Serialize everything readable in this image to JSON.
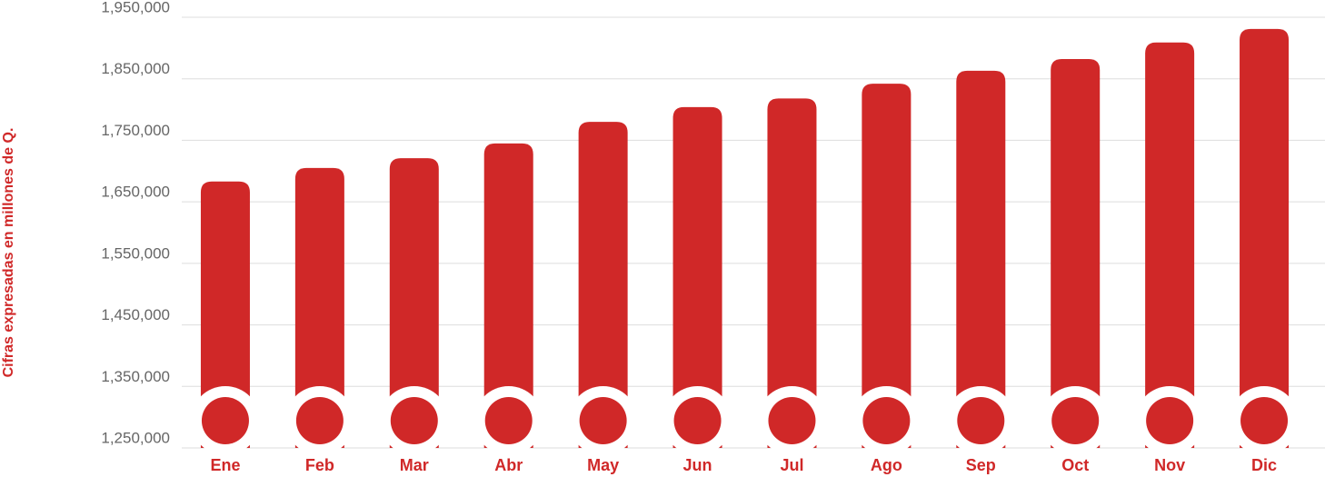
{
  "chart_data": {
    "type": "bar",
    "y_label": "Cifras expresadas en millones de Q.",
    "categories": [
      "Ene",
      "Feb",
      "Mar",
      "Abr",
      "May",
      "Jun",
      "Jul",
      "Ago",
      "Sep",
      "Oct",
      "Nov",
      "Dic"
    ],
    "values": [
      1683000,
      1705000,
      1721000,
      1745000,
      1780000,
      1804000,
      1818000,
      1842000,
      1863000,
      1882000,
      1909000,
      1931000
    ],
    "color": "#d02828",
    "ylim": [
      1250000,
      1950000
    ],
    "yticks": [
      {
        "value": 1250000,
        "label": "1,250,000"
      },
      {
        "value": 1350000,
        "label": "1,350,000"
      },
      {
        "value": 1450000,
        "label": "1,450,000"
      },
      {
        "value": 1550000,
        "label": "1,550,000"
      },
      {
        "value": 1650000,
        "label": "1,650,000"
      },
      {
        "value": 1750000,
        "label": "1,750,000"
      },
      {
        "value": 1850000,
        "label": "1,850,000"
      },
      {
        "value": 1950000,
        "label": "1,950,000"
      }
    ],
    "grid": true
  }
}
